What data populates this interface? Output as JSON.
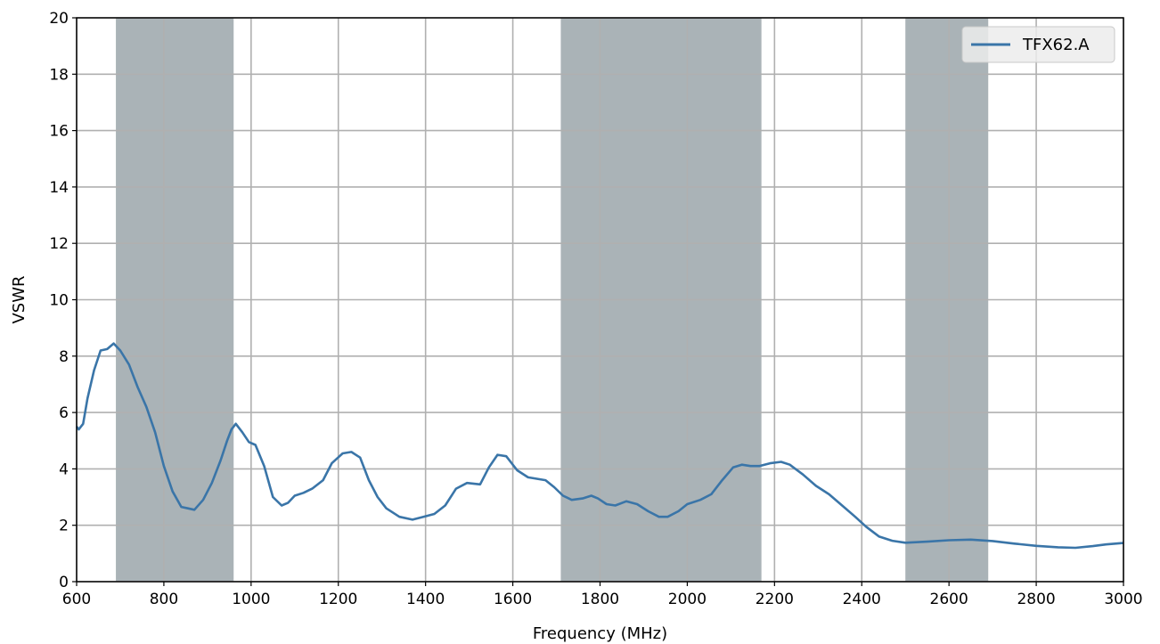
{
  "chart_data": {
    "type": "line",
    "title": "",
    "xlabel": "Frequency (MHz)",
    "ylabel": "VSWR",
    "xlim": [
      600,
      3000
    ],
    "ylim": [
      0,
      20
    ],
    "x_ticks": [
      600,
      800,
      1000,
      1200,
      1400,
      1600,
      1800,
      2000,
      2200,
      2400,
      2600,
      2800,
      3000
    ],
    "y_ticks": [
      0,
      2,
      4,
      6,
      8,
      10,
      12,
      14,
      16,
      18,
      20
    ],
    "grid": true,
    "legend": {
      "placement": "top-right"
    },
    "highlight_bands": [
      {
        "from": 690,
        "to": 960
      },
      {
        "from": 1710,
        "to": 2170
      },
      {
        "from": 2500,
        "to": 2690
      }
    ],
    "series": [
      {
        "name": "TFX62.A",
        "color": "#3a75a8",
        "points": [
          [
            600,
            5.5
          ],
          [
            605,
            5.4
          ],
          [
            615,
            5.6
          ],
          [
            625,
            6.5
          ],
          [
            640,
            7.5
          ],
          [
            655,
            8.2
          ],
          [
            670,
            8.25
          ],
          [
            685,
            8.45
          ],
          [
            700,
            8.2
          ],
          [
            720,
            7.7
          ],
          [
            740,
            6.9
          ],
          [
            760,
            6.2
          ],
          [
            780,
            5.3
          ],
          [
            800,
            4.1
          ],
          [
            820,
            3.2
          ],
          [
            840,
            2.65
          ],
          [
            855,
            2.6
          ],
          [
            870,
            2.55
          ],
          [
            890,
            2.9
          ],
          [
            910,
            3.5
          ],
          [
            930,
            4.3
          ],
          [
            945,
            5.0
          ],
          [
            955,
            5.4
          ],
          [
            965,
            5.6
          ],
          [
            980,
            5.3
          ],
          [
            995,
            4.95
          ],
          [
            1010,
            4.85
          ],
          [
            1030,
            4.1
          ],
          [
            1050,
            3.0
          ],
          [
            1070,
            2.7
          ],
          [
            1085,
            2.8
          ],
          [
            1100,
            3.05
          ],
          [
            1120,
            3.15
          ],
          [
            1140,
            3.3
          ],
          [
            1165,
            3.6
          ],
          [
            1185,
            4.2
          ],
          [
            1210,
            4.55
          ],
          [
            1230,
            4.6
          ],
          [
            1250,
            4.4
          ],
          [
            1270,
            3.6
          ],
          [
            1290,
            3.0
          ],
          [
            1310,
            2.6
          ],
          [
            1340,
            2.3
          ],
          [
            1370,
            2.2
          ],
          [
            1395,
            2.3
          ],
          [
            1420,
            2.4
          ],
          [
            1445,
            2.7
          ],
          [
            1470,
            3.3
          ],
          [
            1495,
            3.5
          ],
          [
            1525,
            3.45
          ],
          [
            1545,
            4.05
          ],
          [
            1565,
            4.5
          ],
          [
            1585,
            4.45
          ],
          [
            1610,
            3.95
          ],
          [
            1635,
            3.7
          ],
          [
            1655,
            3.65
          ],
          [
            1675,
            3.6
          ],
          [
            1695,
            3.35
          ],
          [
            1715,
            3.05
          ],
          [
            1735,
            2.9
          ],
          [
            1760,
            2.95
          ],
          [
            1780,
            3.05
          ],
          [
            1795,
            2.95
          ],
          [
            1815,
            2.75
          ],
          [
            1835,
            2.7
          ],
          [
            1860,
            2.85
          ],
          [
            1885,
            2.75
          ],
          [
            1910,
            2.5
          ],
          [
            1935,
            2.3
          ],
          [
            1955,
            2.3
          ],
          [
            1980,
            2.5
          ],
          [
            2000,
            2.75
          ],
          [
            2030,
            2.9
          ],
          [
            2055,
            3.1
          ],
          [
            2080,
            3.6
          ],
          [
            2105,
            4.05
          ],
          [
            2125,
            4.15
          ],
          [
            2145,
            4.1
          ],
          [
            2165,
            4.1
          ],
          [
            2190,
            4.2
          ],
          [
            2215,
            4.25
          ],
          [
            2235,
            4.15
          ],
          [
            2265,
            3.8
          ],
          [
            2295,
            3.4
          ],
          [
            2325,
            3.1
          ],
          [
            2355,
            2.7
          ],
          [
            2385,
            2.3
          ],
          [
            2410,
            1.95
          ],
          [
            2440,
            1.6
          ],
          [
            2470,
            1.45
          ],
          [
            2500,
            1.38
          ],
          [
            2550,
            1.42
          ],
          [
            2600,
            1.47
          ],
          [
            2650,
            1.49
          ],
          [
            2700,
            1.44
          ],
          [
            2750,
            1.35
          ],
          [
            2800,
            1.27
          ],
          [
            2850,
            1.22
          ],
          [
            2890,
            1.2
          ],
          [
            2930,
            1.26
          ],
          [
            2960,
            1.32
          ],
          [
            3000,
            1.37
          ]
        ]
      }
    ]
  }
}
